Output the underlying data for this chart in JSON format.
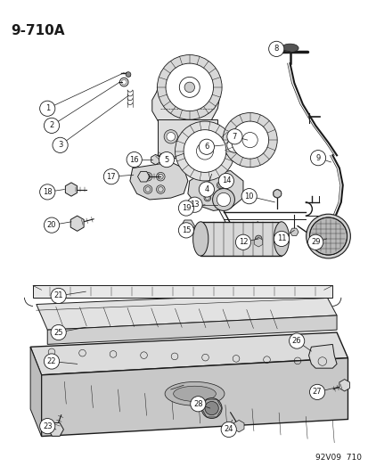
{
  "title": "9-710A",
  "subtitle": "92V09  710",
  "bg_color": "#ffffff",
  "line_color": "#1a1a1a",
  "text_color": "#1a1a1a",
  "fig_width": 4.14,
  "fig_height": 5.33,
  "dpi": 100,
  "callout_fontsize": 6.0,
  "title_fontsize": 11,
  "subtitle_fontsize": 6.5
}
